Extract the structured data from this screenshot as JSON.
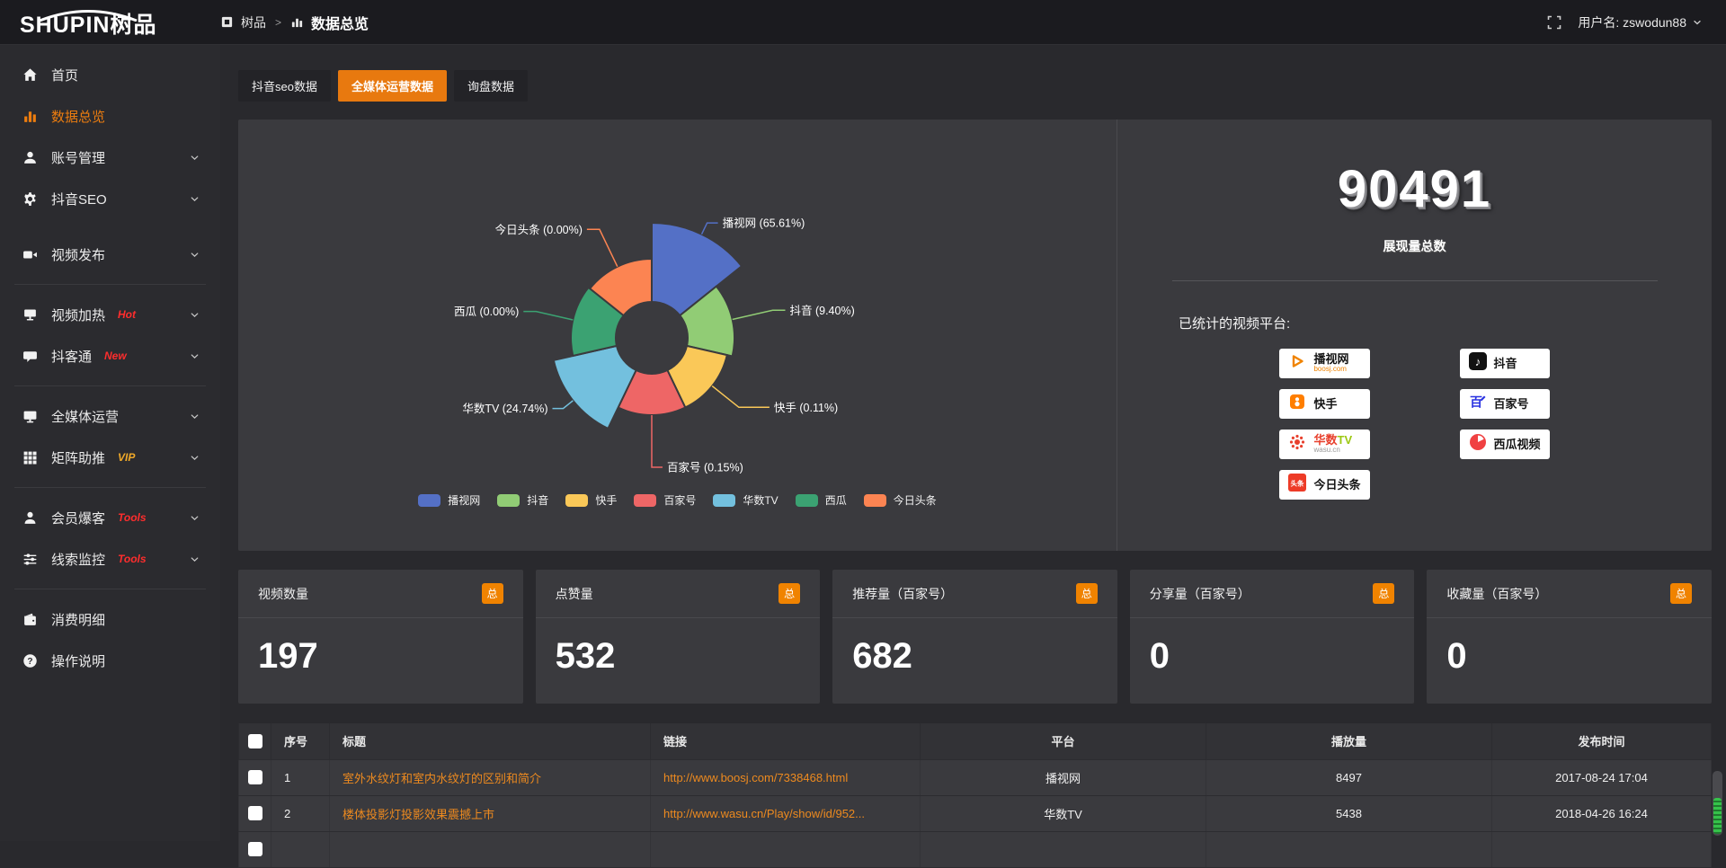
{
  "colors": {
    "accent": "#ED7D0F",
    "tab_active": "#E8790F",
    "badge_orange": "#F08300",
    "link_orange": "#ED8A1F",
    "hot_red": "#FF2D2D",
    "vip_yellow": "#F0A929"
  },
  "topbar": {
    "logo_main": "SHUPIN",
    "logo_suffix": "树品",
    "breadcrumb": {
      "root": "树品",
      "separator": ">",
      "current": "数据总览"
    },
    "user_label": "用户名: zswodun88"
  },
  "sidebar": {
    "items": [
      {
        "name": "home",
        "label": "首页",
        "icon": "home-icon"
      },
      {
        "name": "data-overview",
        "label": "数据总览",
        "icon": "bar-chart-icon",
        "active": true
      },
      {
        "name": "account-management",
        "label": "账号管理",
        "icon": "user-icon",
        "expandable": true
      },
      {
        "name": "douyin-seo",
        "label": "抖音SEO",
        "icon": "gear-icon",
        "expandable": true
      },
      {
        "name": "video-publish",
        "label": "视频发布",
        "icon": "video-camera-icon",
        "expandable": true,
        "gap": true
      },
      {
        "divider": true
      },
      {
        "name": "video-heating",
        "label": "视频加热",
        "icon": "board-icon",
        "badge": "Hot",
        "badge_color": "#FF2D2D",
        "expandable": true
      },
      {
        "name": "douketong",
        "label": "抖客通",
        "icon": "chat-icon",
        "badge": "New",
        "badge_color": "#FF2D2D",
        "expandable": true
      },
      {
        "divider": true
      },
      {
        "name": "omnimedia-operation",
        "label": "全媒体运营",
        "icon": "monitor-icon",
        "expandable": true
      },
      {
        "name": "matrix-boost",
        "label": "矩阵助推",
        "icon": "grid-icon",
        "badge": "VIP",
        "badge_color": "#F0A929",
        "expandable": true
      },
      {
        "divider": true
      },
      {
        "name": "member-burst",
        "label": "会员爆客",
        "icon": "person-icon",
        "badge": "Tools",
        "badge_color": "#FF2D2D",
        "expandable": true
      },
      {
        "name": "lead-monitoring",
        "label": "线索监控",
        "icon": "sliders-icon",
        "badge": "Tools",
        "badge_color": "#FF2D2D",
        "expandable": true
      },
      {
        "divider": true
      },
      {
        "name": "consumption-details",
        "label": "消费明细",
        "icon": "wallet-icon"
      },
      {
        "name": "operation-guide",
        "label": "操作说明",
        "icon": "question-icon"
      }
    ]
  },
  "tabs": [
    {
      "name": "douyin-seo-data",
      "label": "抖音seo数据",
      "active": false
    },
    {
      "name": "omnimedia-operation-data",
      "label": "全媒体运营数据",
      "active": true
    },
    {
      "name": "inquiry-data",
      "label": "询盘数据",
      "active": false
    }
  ],
  "chart_data": {
    "type": "pie",
    "subtype": "nightingale-rose",
    "labels": [
      "播视网",
      "抖音",
      "快手",
      "百家号",
      "华数TV",
      "西瓜",
      "今日头条"
    ],
    "values_percent": [
      65.61,
      9.4,
      0.11,
      0.15,
      24.74,
      0.0,
      0.0
    ],
    "percent_labels": [
      "65.61%",
      "9.40%",
      "0.11%",
      "0.15%",
      "24.74%",
      "0.00%",
      "0.00%"
    ],
    "colors": [
      "#5470C6",
      "#91CC75",
      "#FAC858",
      "#EE6666",
      "#73C0DE",
      "#3BA272",
      "#FC8452"
    ],
    "legend": [
      "播视网",
      "抖音",
      "快手",
      "百家号",
      "华数TV",
      "西瓜",
      "今日头条"
    ],
    "legend_position": "bottom",
    "label_format": "{name} ({percent})"
  },
  "summary": {
    "total_value": "90491",
    "total_label": "展现量总数",
    "platforms_title": "已统计的视频平台:",
    "platform_columns": [
      [
        {
          "name": "播视网",
          "sub": "boosj.com",
          "icon": "boosj-logo"
        },
        {
          "name": "快手",
          "icon": "kuaishou-logo"
        },
        {
          "name": "华数TV",
          "sub": "wasu.cn",
          "icon": "wasu-logo"
        },
        {
          "name": "今日头条",
          "icon": "toutiao-logo"
        }
      ],
      [
        {
          "name": "抖音",
          "icon": "douyin-logo"
        },
        {
          "name": "百家号",
          "icon": "baijiahao-logo"
        },
        {
          "name": "西瓜视频",
          "icon": "xigua-logo"
        }
      ]
    ]
  },
  "stat_cards": [
    {
      "label": "视频数量",
      "badge": "总",
      "value": "197"
    },
    {
      "label": "点赞量",
      "badge": "总",
      "value": "532"
    },
    {
      "label": "推荐量（百家号）",
      "badge": "总",
      "value": "682"
    },
    {
      "label": "分享量（百家号）",
      "badge": "总",
      "value": "0"
    },
    {
      "label": "收藏量（百家号）",
      "badge": "总",
      "value": "0"
    }
  ],
  "table": {
    "headers": {
      "seq": "序号",
      "title": "标题",
      "link": "链接",
      "platform": "平台",
      "plays": "播放量",
      "time": "发布时间"
    },
    "rows": [
      {
        "seq": "1",
        "title": "室外水纹灯和室内水纹灯的区别和简介",
        "link": "http://www.boosj.com/7338468.html",
        "platform": "播视网",
        "plays": "8497",
        "time": "2017-08-24 17:04"
      },
      {
        "seq": "2",
        "title": "楼体投影灯投影效果震撼上市",
        "link": "http://www.wasu.cn/Play/show/id/952...",
        "platform": "华数TV",
        "plays": "5438",
        "time": "2018-04-26 16:24"
      }
    ]
  }
}
